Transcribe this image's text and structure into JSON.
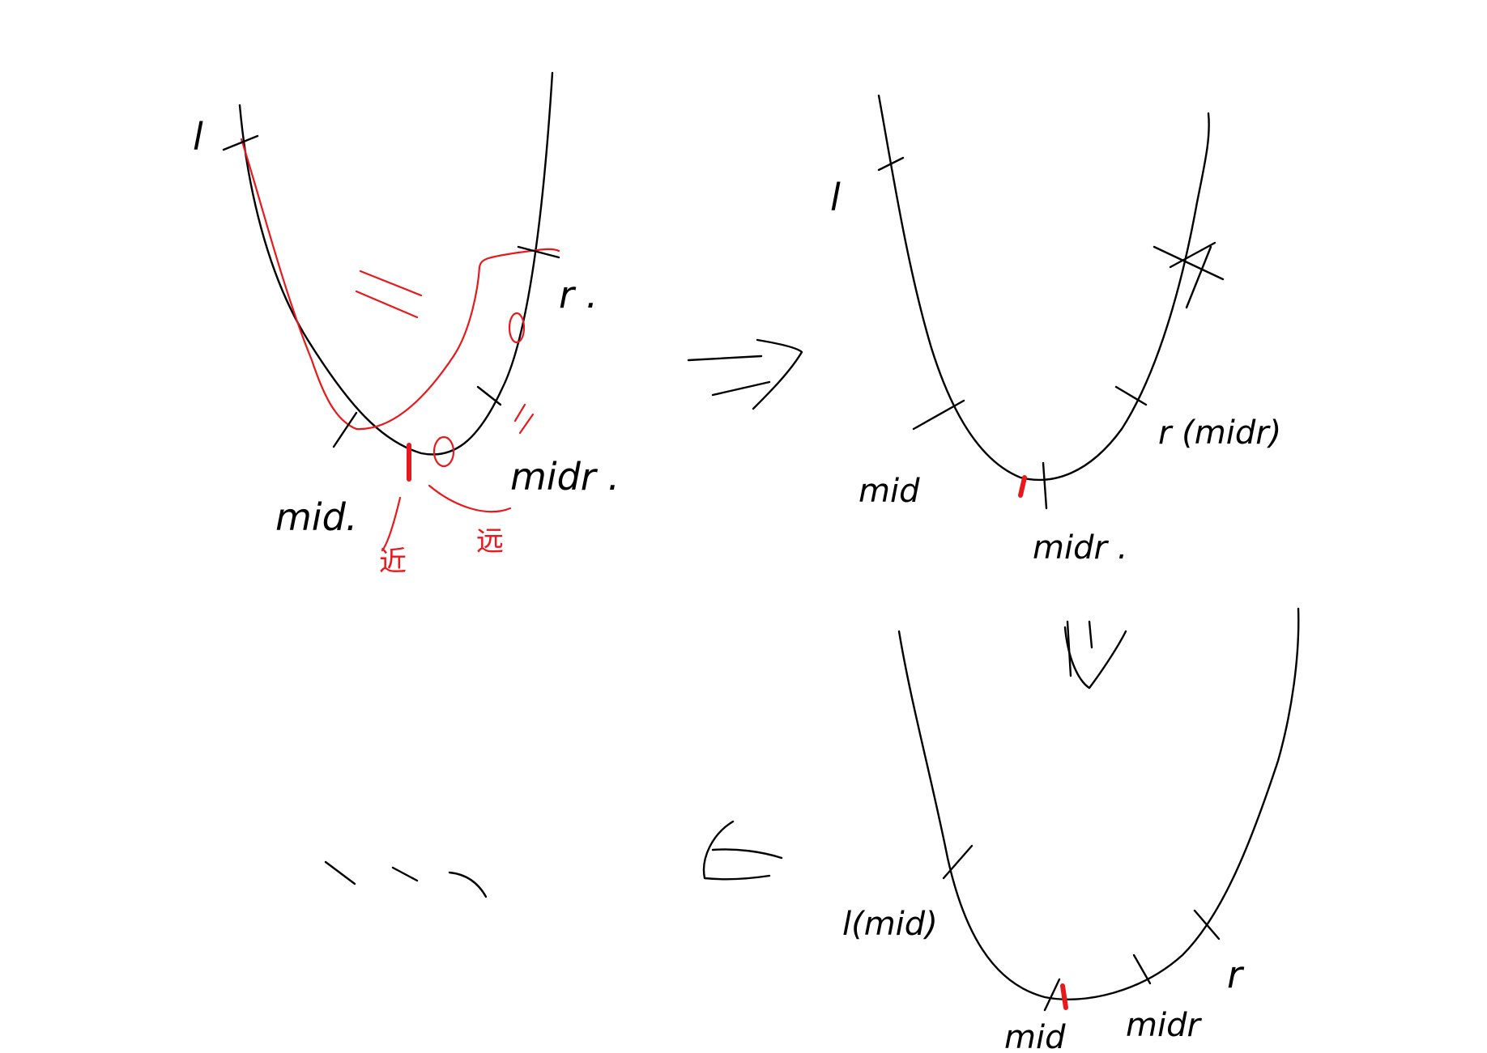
{
  "colors": {
    "ink": "#000000",
    "highlight": "#e8191c",
    "background": "#ffffff"
  },
  "panel1": {
    "label_l": "l",
    "label_r": "r .",
    "label_mid": "mid.",
    "label_midr": "midr .",
    "note_left": "近",
    "note_right": "远",
    "equal_mark": "="
  },
  "panel2": {
    "label_l": "l",
    "label_mid": "mid",
    "label_r_midr": "r (midr)",
    "label_midr": "midr ."
  },
  "panel3": {
    "label_l_mid": "l(mid)",
    "label_mid": "mid",
    "label_midr": "midr",
    "label_r": "r"
  },
  "ellipsis": "\\ \\ \\",
  "arrow_right": "right-arrow-icon",
  "arrow_down": "down-arrow-icon",
  "arrow_left": "left-arrow-icon"
}
